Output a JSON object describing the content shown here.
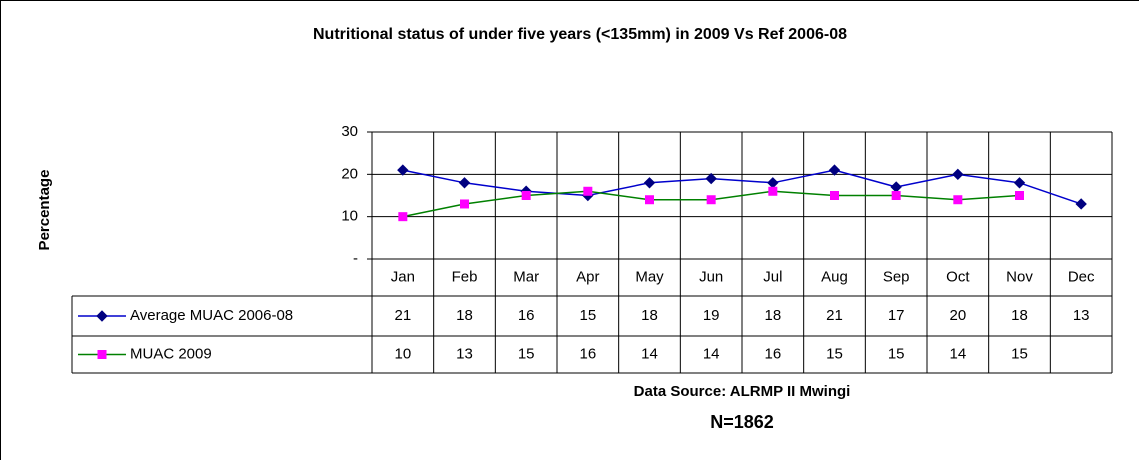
{
  "chart_data": {
    "type": "line",
    "title": "Nutritional status of under five years (<135mm) in 2009 Vs Ref 2006-08",
    "y_label": "Percentage",
    "categories": [
      "Jan",
      "Feb",
      "Mar",
      "Apr",
      "May",
      "Jun",
      "Jul",
      "Aug",
      "Sep",
      "Oct",
      "Nov",
      "Dec"
    ],
    "series": [
      {
        "name": "Average MUAC 2006-08",
        "color": "#000080",
        "line_color": "#0000cc",
        "marker": "diamond",
        "values": [
          21,
          18,
          16,
          15,
          18,
          19,
          18,
          21,
          17,
          20,
          18,
          13
        ]
      },
      {
        "name": "MUAC 2009",
        "color": "#ff00ff",
        "line_color": "#008000",
        "marker": "square",
        "values": [
          10,
          13,
          15,
          16,
          14,
          14,
          16,
          15,
          15,
          14,
          15,
          null
        ]
      }
    ],
    "ylim": [
      0,
      30
    ],
    "yticks": [
      {
        "value": 0,
        "label": "-"
      },
      10,
      20,
      30
    ],
    "grid": true,
    "data_table": true,
    "source": "Data Source: ALRMP II Mwingi",
    "note": "N=1862"
  }
}
